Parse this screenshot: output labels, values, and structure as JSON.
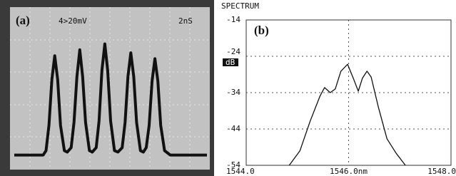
{
  "chart_data": [
    {
      "type": "line",
      "panel_label": "(a)",
      "annotations": [
        "4>20mV",
        "2nS"
      ],
      "x": [
        0,
        1.5,
        1.65,
        1.8,
        1.95,
        2.1,
        2.25,
        2.4,
        2.6,
        2.75,
        2.95,
        3.1,
        3.25,
        3.4,
        3.55,
        3.7,
        3.9,
        4.05,
        4.25,
        4.4,
        4.55,
        4.7,
        4.85,
        5.0,
        5.2,
        5.38,
        5.6,
        5.75,
        5.9,
        6.05,
        6.2,
        6.35,
        6.55,
        6.7,
        6.85,
        7.0,
        7.15,
        7.3,
        7.45,
        7.6,
        7.8,
        8.1,
        10
      ],
      "values": [
        0.05,
        0.05,
        0.08,
        0.25,
        0.56,
        0.72,
        0.56,
        0.25,
        0.08,
        0.07,
        0.1,
        0.27,
        0.58,
        0.76,
        0.58,
        0.27,
        0.08,
        0.07,
        0.1,
        0.28,
        0.62,
        0.8,
        0.62,
        0.28,
        0.08,
        0.07,
        0.1,
        0.27,
        0.58,
        0.74,
        0.58,
        0.27,
        0.08,
        0.07,
        0.1,
        0.25,
        0.55,
        0.7,
        0.55,
        0.25,
        0.08,
        0.05,
        0.05
      ],
      "xlim": [
        0,
        10
      ],
      "ylim": [
        0,
        1
      ],
      "color": "#111111"
    },
    {
      "type": "line",
      "panel_label": "(b)",
      "title": "SPECTRUM",
      "unit_label": "dB",
      "x": [
        1544.84,
        1545.05,
        1545.25,
        1545.44,
        1545.53,
        1545.64,
        1545.74,
        1545.85,
        1545.98,
        1546.09,
        1546.19,
        1546.27,
        1546.36,
        1546.44,
        1546.58,
        1546.75,
        1546.93,
        1547.11
      ],
      "values": [
        -54,
        -50,
        -41.8,
        -35,
        -32.6,
        -34,
        -33,
        -28.1,
        -26.2,
        -30,
        -33.6,
        -30,
        -28.1,
        -29.7,
        -37.9,
        -46.7,
        -50.7,
        -54
      ],
      "xlim": [
        1544,
        1548
      ],
      "ylim": [
        -54,
        -14
      ],
      "xticks": [
        {
          "value": 1544,
          "label": "1544.0"
        },
        {
          "value": 1546,
          "label": "1546.0nm"
        },
        {
          "value": 1548,
          "label": "1548.0"
        }
      ],
      "yticks": [
        -14,
        -24,
        -34,
        -44,
        -54
      ],
      "grid": true,
      "color": "#111111"
    }
  ]
}
